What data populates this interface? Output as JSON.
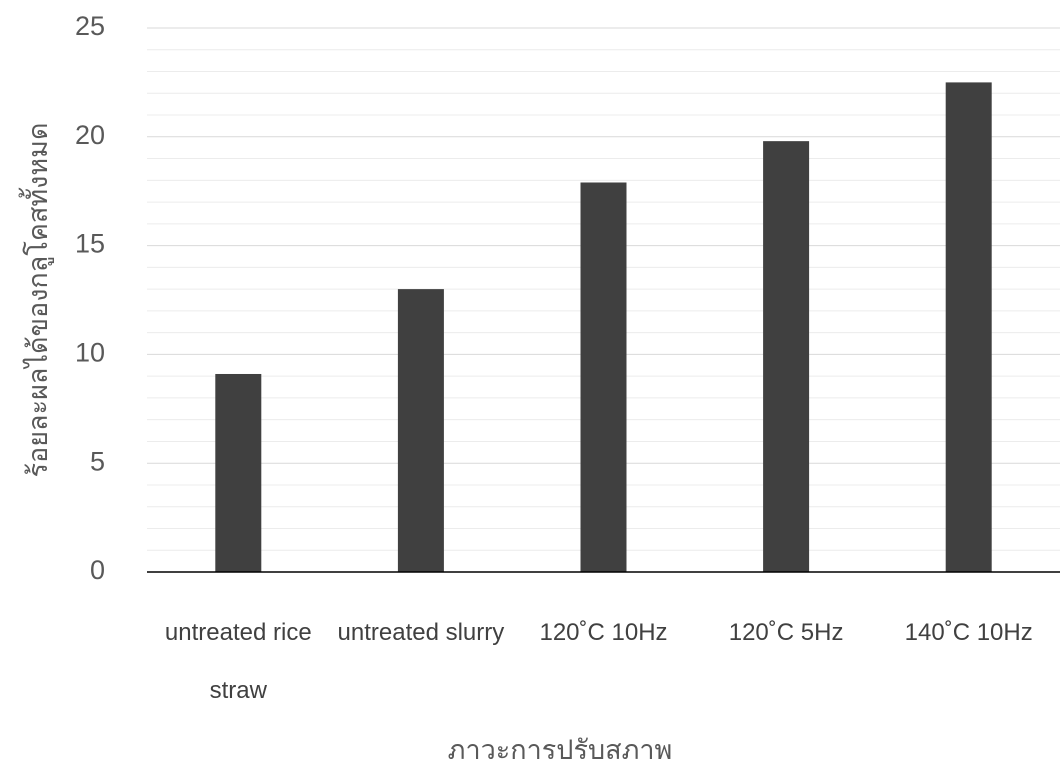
{
  "chart_data": {
    "type": "bar",
    "x_label": "ภาวะการปรับสภาพ",
    "y_label": "ร้อยละผลได้ของกลูโคสทั้งหมด",
    "categories": [
      "untreated rice straw",
      "untreated slurry",
      "120˚C 10Hz",
      "120˚C 5Hz",
      "140˚C 10Hz"
    ],
    "values": [
      9.1,
      13.0,
      17.9,
      19.8,
      22.5
    ],
    "color": "#404040",
    "ylim": [
      0,
      25
    ],
    "yticks": [
      0,
      5,
      10,
      15,
      20,
      25
    ],
    "grid": true
  }
}
